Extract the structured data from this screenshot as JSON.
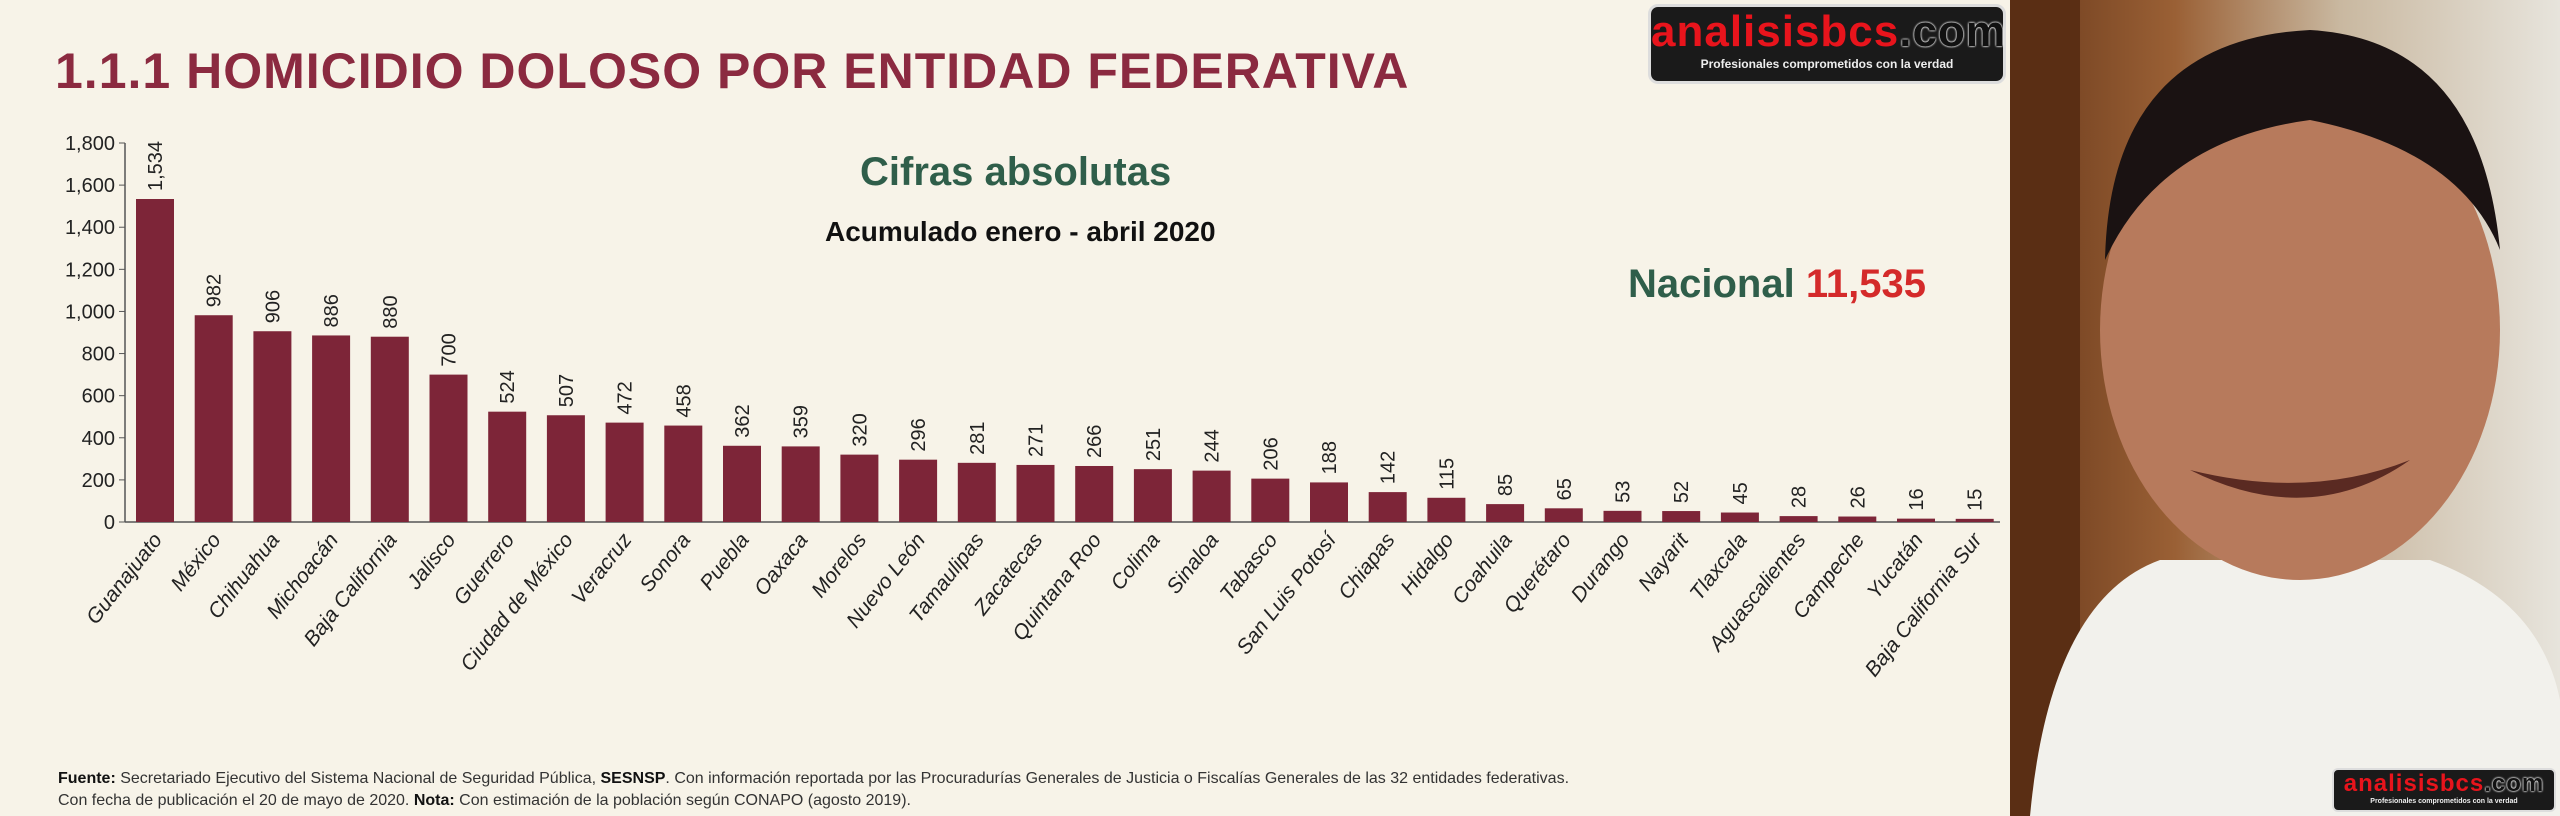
{
  "header": {
    "title": "1.1.1 HOMICIDIO DOLOSO POR ENTIDAD FEDERATIVA",
    "subtitle": "Cifras absolutas",
    "period": "Acumulado enero - abril 2020",
    "nacional_label": "Nacional",
    "nacional_value": "11,535"
  },
  "footer": {
    "fuente_label": "Fuente:",
    "fuente_text1": " Secretariado Ejecutivo del Sistema Nacional de Seguridad Pública, ",
    "sesnsp": "SESNSP",
    "fuente_text2": ". Con información reportada por las Procuradurías Generales de Justicia o Fiscalías Generales de las 32 entidades federativas.",
    "line2a": "Con fecha de publicación el 20 de mayo de 2020. ",
    "nota_label": "Nota:",
    "line2b": " Con estimación de la población según CONAPO (agosto 2019)."
  },
  "logo": {
    "main": "analisisbcs",
    "dot_com": ".com",
    "tagline": "Profesionales comprometidos con la verdad"
  },
  "colors": {
    "bar": "#7d2538",
    "title": "#8b2a40",
    "green": "#2f5e4a",
    "red": "#d42a2a"
  },
  "chart_data": {
    "type": "bar",
    "title": "1.1.1 HOMICIDIO DOLOSO POR ENTIDAD FEDERATIVA",
    "subtitle": "Cifras absolutas",
    "ylim": [
      0,
      1800
    ],
    "yticks": [
      0,
      200,
      400,
      600,
      800,
      1000,
      1200,
      1400,
      1600,
      1800
    ],
    "ytick_labels": [
      "0",
      "200",
      "400",
      "600",
      "800",
      "1,000",
      "1,200",
      "1,400",
      "1,600",
      "1,800"
    ],
    "grid": false,
    "categories": [
      "Guanajuato",
      "México",
      "Chihuahua",
      "Michoacán",
      "Baja California",
      "Jalisco",
      "Guerrero",
      "Ciudad de México",
      "Veracruz",
      "Sonora",
      "Puebla",
      "Oaxaca",
      "Morelos",
      "Nuevo León",
      "Tamaulipas",
      "Zacatecas",
      "Quintana Roo",
      "Colima",
      "Sinaloa",
      "Tabasco",
      "San Luis Potosí",
      "Chiapas",
      "Hidalgo",
      "Coahuila",
      "Querétaro",
      "Durango",
      "Nayarit",
      "Tlaxcala",
      "Aguascalientes",
      "Campeche",
      "Yucatán",
      "Baja California Sur"
    ],
    "values": [
      1534,
      982,
      906,
      886,
      880,
      700,
      524,
      507,
      472,
      458,
      362,
      359,
      320,
      296,
      281,
      271,
      266,
      251,
      244,
      206,
      188,
      142,
      115,
      85,
      65,
      53,
      52,
      45,
      28,
      26,
      16,
      15
    ],
    "value_labels": [
      "1,534",
      "982",
      "906",
      "886",
      "880",
      "700",
      "524",
      "507",
      "472",
      "458",
      "362",
      "359",
      "320",
      "296",
      "281",
      "271",
      "266",
      "251",
      "244",
      "206",
      "188",
      "142",
      "115",
      "85",
      "65",
      "53",
      "52",
      "45",
      "28",
      "26",
      "16",
      "15"
    ]
  }
}
